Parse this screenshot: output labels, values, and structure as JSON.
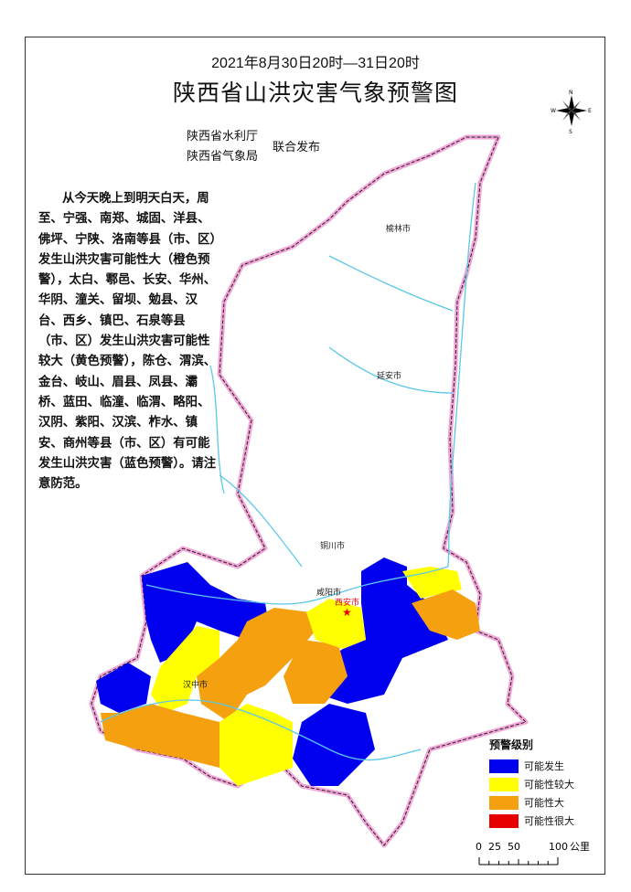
{
  "header": {
    "period": "2021年8月30日20时—31日20时",
    "title": "陕西省山洪灾害气象预警图",
    "publishers": [
      "陕西省水利厅",
      "陕西省气象局"
    ],
    "joint_release": "联合发布"
  },
  "description": "从今天晚上到明天白天，周至、宁强、南郑、城固、洋县、佛坪、宁陕、洛南等县（市、区）发生山洪灾害可能性大（橙色预警），太白、鄠邑、长安、华州、华阴、潼关、留坝、勉县、汉台、西乡、镇巴、石泉等县（市、区）发生山洪灾害可能性较大（黄色预警），陈仓、渭滨、金台、岐山、眉县、凤县、灞桥、蓝田、临潼、临渭、略阳、汉阴、紫阳、汉滨、柞水、镇安、商州等县（市、区）有可能发生山洪灾害（蓝色预警）。请注意防范。",
  "map": {
    "cities": [
      "榆林市",
      "延安市",
      "铜川市",
      "咸阳市",
      "西安市",
      "汉中市"
    ],
    "capital_color": "#e60000",
    "border_color": "#f2a6d8",
    "river_color": "#5bc8e8"
  },
  "compass": {
    "n": "N",
    "s": "S",
    "e": "E",
    "w": "W"
  },
  "legend": {
    "title": "预警级别",
    "items": [
      {
        "label": "可能发生",
        "color": "#0000ee"
      },
      {
        "label": "可能性较大",
        "color": "#ffff00"
      },
      {
        "label": "可能性大",
        "color": "#f5a00f"
      },
      {
        "label": "可能性很大",
        "color": "#e60000"
      }
    ]
  },
  "scale": {
    "ticks": [
      "0",
      "25",
      "50",
      "100"
    ],
    "unit": "公里"
  }
}
